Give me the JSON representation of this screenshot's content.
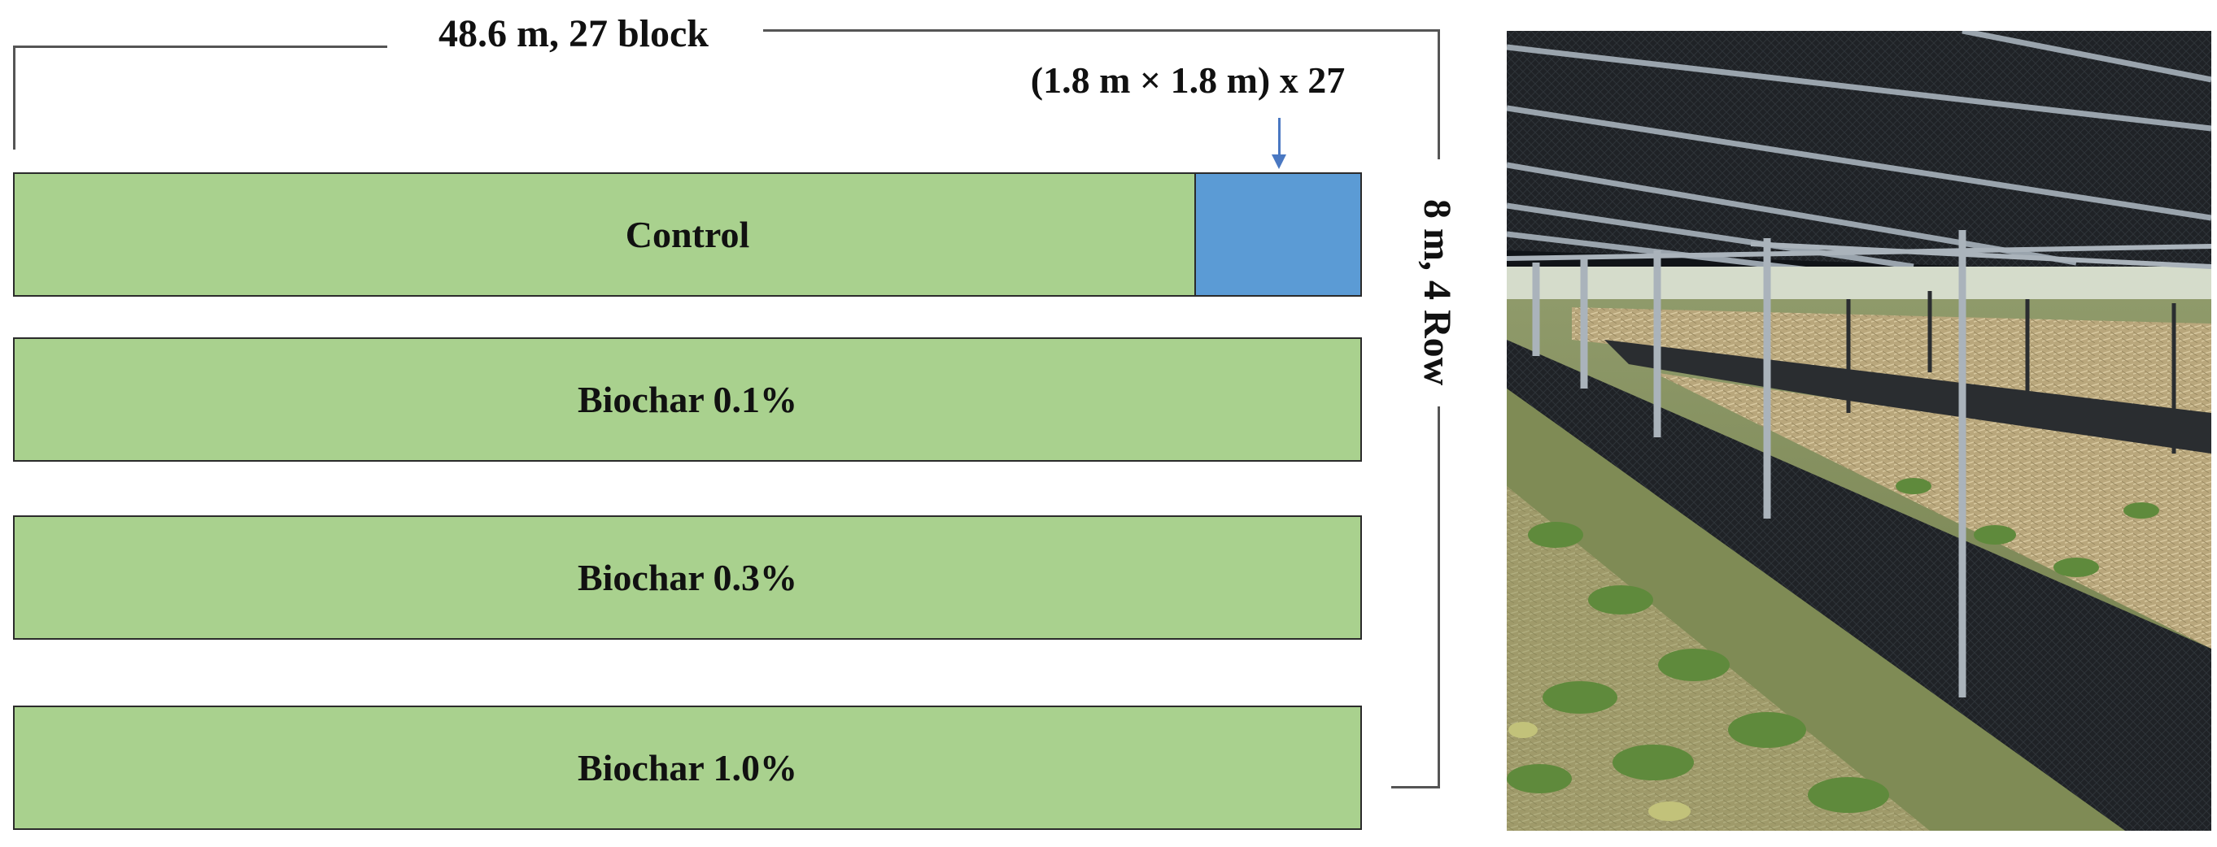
{
  "dimensions": {
    "length_label": "48.6 m, 27 block",
    "width_label": "8 m, 4 Row",
    "plot_label": "(1.8 m × 1.8 m) x 27"
  },
  "rows": [
    {
      "label": "Control"
    },
    {
      "label": "Biochar 0.1%"
    },
    {
      "label": "Biochar 0.3%"
    },
    {
      "label": "Biochar 1.0%"
    }
  ],
  "colors": {
    "row_fill": "#a9d18e",
    "plot_fill": "#5b9bd5",
    "arrow": "#4a78c2"
  },
  "photo": {
    "subject": "field-cultivation-under-shade-structure",
    "icon": "field-photo-icon"
  }
}
